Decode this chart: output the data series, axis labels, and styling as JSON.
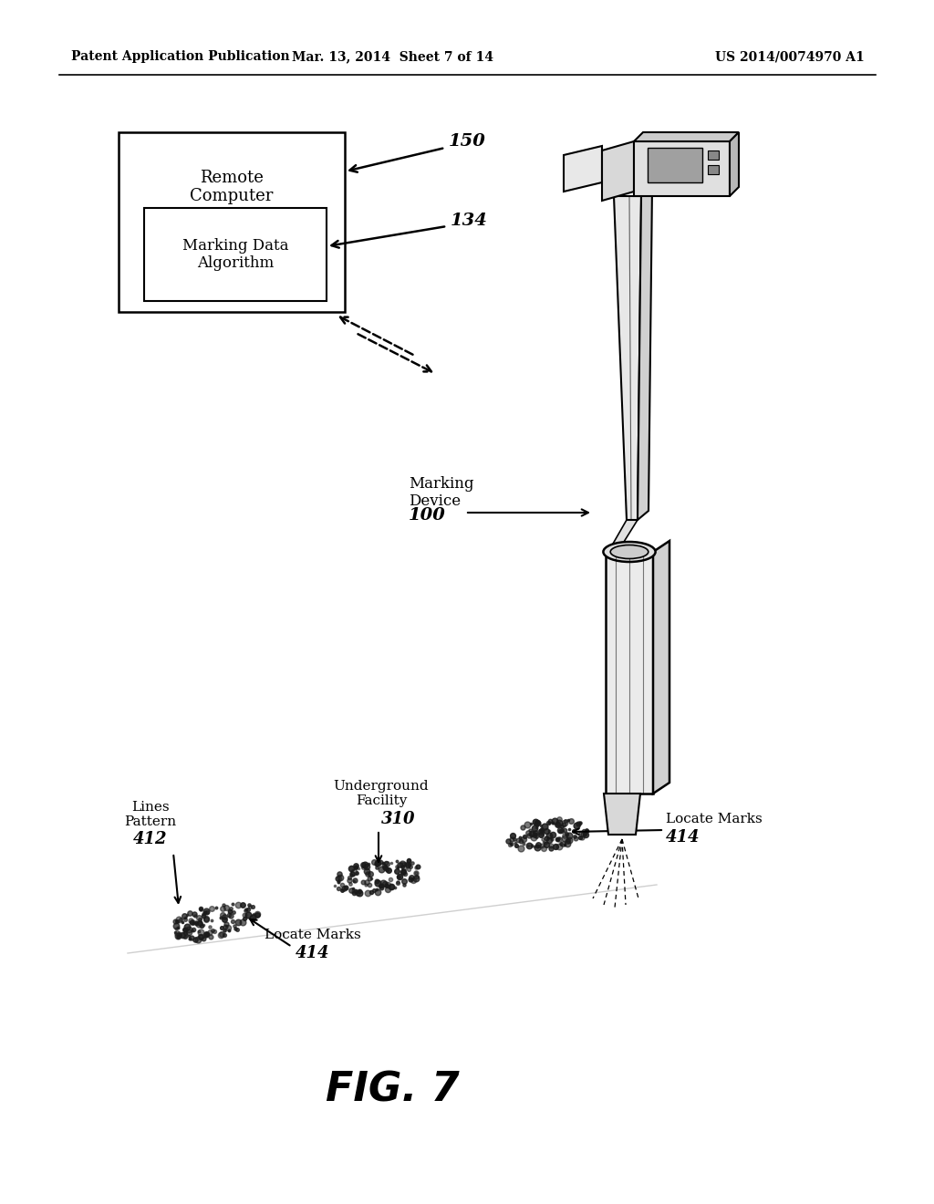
{
  "bg_color": "#ffffff",
  "header_left": "Patent Application Publication",
  "header_center": "Mar. 13, 2014  Sheet 7 of 14",
  "header_right": "US 2014/0074970 A1",
  "figure_label": "FIG. 7",
  "outer_box_label": "Remote\nComputer",
  "inner_box_label": "Marking Data\nAlgorithm",
  "label_150": "150",
  "label_134": "134",
  "label_100": "100",
  "label_310": "310",
  "label_412": "412",
  "label_414": "414",
  "marking_device_label": "Marking\nDevice",
  "underground_label": "Underground\nFacility",
  "lines_pattern_label": "Lines\nPattern",
  "locate_marks_label": "Locate Marks"
}
